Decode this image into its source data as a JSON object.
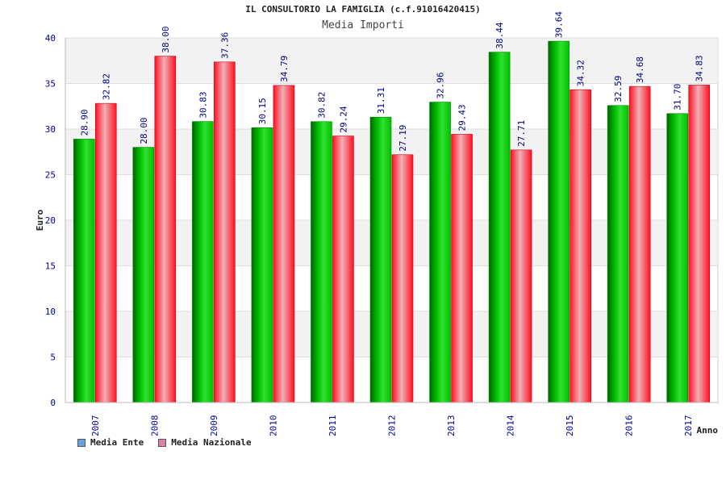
{
  "chart_data": {
    "type": "bar",
    "title": "IL CONSULTORIO LA FAMIGLIA (c.f.91016420415)",
    "subtitle": "Media Importi",
    "xlabel": "Anno",
    "ylabel": "Euro",
    "ylim": [
      0,
      40
    ],
    "yticks": [
      0,
      5,
      10,
      15,
      20,
      25,
      30,
      35,
      40
    ],
    "categories": [
      "2007",
      "2008",
      "2009",
      "2010",
      "2011",
      "2012",
      "2013",
      "2014",
      "2015",
      "2016",
      "2017"
    ],
    "series": [
      {
        "name": "Media Ente",
        "values": [
          28.9,
          28.0,
          30.83,
          30.15,
          30.82,
          31.31,
          32.96,
          38.44,
          39.64,
          32.59,
          31.7
        ],
        "labels": [
          "28.90",
          "28.00",
          "30.83",
          "30.15",
          "30.82",
          "31.31",
          "32.96",
          "38.44",
          "39.64",
          "32.59",
          "31.70"
        ]
      },
      {
        "name": "Media Nazionale",
        "values": [
          32.82,
          38.0,
          37.36,
          34.79,
          29.24,
          27.19,
          29.43,
          27.71,
          34.32,
          34.68,
          34.83
        ],
        "labels": [
          "32.82",
          "38.00",
          "37.36",
          "34.79",
          "29.24",
          "27.19",
          "29.43",
          "27.71",
          "34.32",
          "34.68",
          "34.83"
        ]
      }
    ],
    "grid": true,
    "legend_position": "bottom-left",
    "colors": {
      "series1": "#00c000",
      "series1_dark": "#006600",
      "series2": "#ff1020",
      "series2_light": "#f0b0b8",
      "legend_swatch1": "#6aa0e0",
      "legend_swatch2": "#e080a8",
      "tick_text": "#000099",
      "band": "#f2f2f2"
    }
  }
}
